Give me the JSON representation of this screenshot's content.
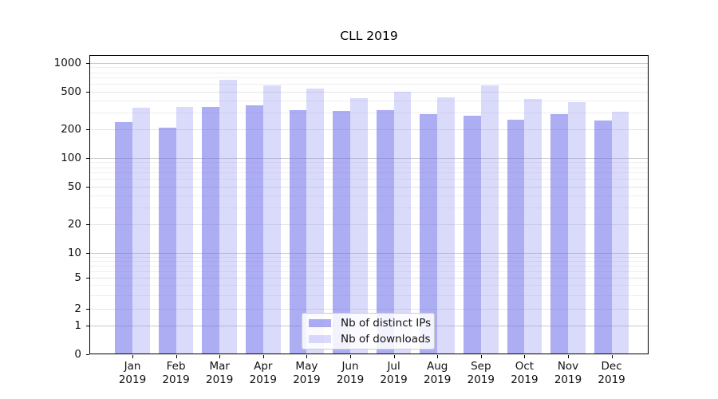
{
  "chart_data": {
    "type": "bar",
    "title": "CLL 2019",
    "categories": [
      "Jan 2019",
      "Feb 2019",
      "Mar 2019",
      "Apr 2019",
      "May 2019",
      "Jun 2019",
      "Jul 2019",
      "Aug 2019",
      "Sep 2019",
      "Oct 2019",
      "Nov 2019",
      "Dec 2019"
    ],
    "series": [
      {
        "name": "Nb of distinct IPs",
        "color": "rgba(106,106,233,0.55)",
        "values": [
          239,
          208,
          345,
          358,
          319,
          313,
          320,
          291,
          279,
          253,
          288,
          249
        ]
      },
      {
        "name": "Nb of downloads",
        "color": "rgba(148,148,242,0.34)",
        "values": [
          340,
          348,
          670,
          578,
          538,
          427,
          497,
          438,
          580,
          419,
          388,
          307
        ]
      }
    ],
    "xlabel": "",
    "ylabel": "",
    "yscale": "symlog",
    "yticks": [
      1000,
      500,
      200,
      100,
      50,
      20,
      10,
      5,
      2,
      1,
      0
    ],
    "ylim": [
      0,
      1200
    ],
    "grid": true,
    "legend_position": "lower center"
  }
}
